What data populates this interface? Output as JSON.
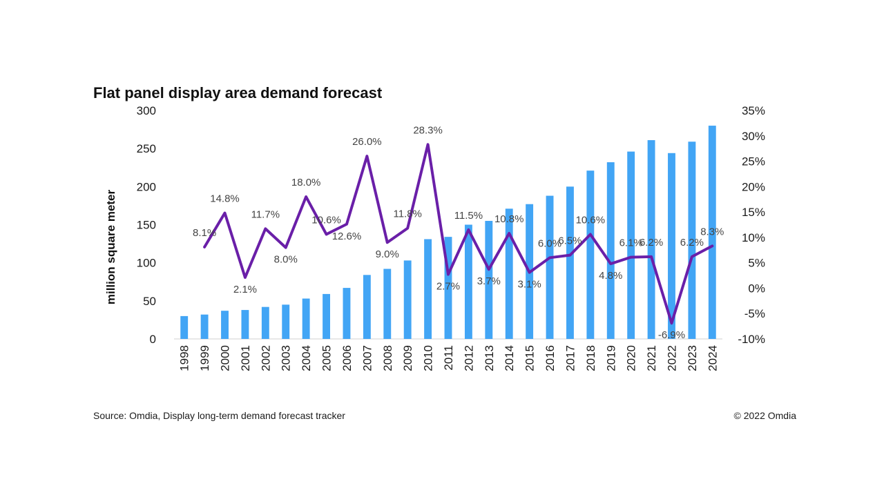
{
  "chart_data": {
    "type": "bar",
    "title": "Flat panel display area demand forecast",
    "ylabel": "million square meter",
    "ylim": [
      0,
      300
    ],
    "y2lim": [
      -0.1,
      0.35
    ],
    "y_ticks": [
      "0",
      "50",
      "100",
      "150",
      "200",
      "250",
      "300"
    ],
    "y2_ticks": [
      "-10%",
      "-5%",
      "0%",
      "5%",
      "10%",
      "15%",
      "20%",
      "25%",
      "30%",
      "35%"
    ],
    "categories": [
      "1998",
      "1999",
      "2000",
      "2001",
      "2002",
      "2003",
      "2004",
      "2005",
      "2006",
      "2007",
      "2008",
      "2009",
      "2010",
      "2011",
      "2012",
      "2013",
      "2014",
      "2015",
      "2016",
      "2017",
      "2018",
      "2019",
      "2020",
      "2021",
      "2022",
      "2023",
      "2024"
    ],
    "series": [
      {
        "type": "bar",
        "axis": "left",
        "color": "#42A5F5",
        "values": [
          30,
          32,
          37,
          38,
          42,
          45,
          53,
          59,
          67,
          84,
          92,
          103,
          131,
          134,
          150,
          155,
          171,
          177,
          188,
          200,
          221,
          232,
          246,
          261,
          244,
          259,
          280
        ]
      },
      {
        "type": "line",
        "axis": "right",
        "color": "#6A1FA8",
        "values": [
          null,
          0.081,
          0.148,
          0.021,
          0.117,
          0.08,
          0.18,
          0.106,
          0.126,
          0.26,
          0.09,
          0.118,
          0.283,
          0.027,
          0.115,
          0.037,
          0.108,
          0.031,
          0.06,
          0.065,
          0.106,
          0.048,
          0.061,
          0.062,
          -0.069,
          0.062,
          0.083
        ],
        "labels": [
          "",
          "8.1%",
          "14.8%",
          "2.1%",
          "11.7%",
          "8.0%",
          "18.0%",
          "10.6%",
          "12.6%",
          "26.0%",
          "9.0%",
          "11.8%",
          "28.3%",
          "2.7%",
          "11.5%",
          "3.7%",
          "10.8%",
          "3.1%",
          "6.0%",
          "6.5%",
          "10.6%",
          "4.8%",
          "6.1%",
          "6.2%",
          "-6.9%",
          "6.2%",
          "8.3%"
        ]
      }
    ],
    "grid": false,
    "legend": "none"
  },
  "footer": {
    "source": "Source: Omdia, Display long-term demand forecast tracker",
    "copyright": "©  2022 Omdia"
  }
}
